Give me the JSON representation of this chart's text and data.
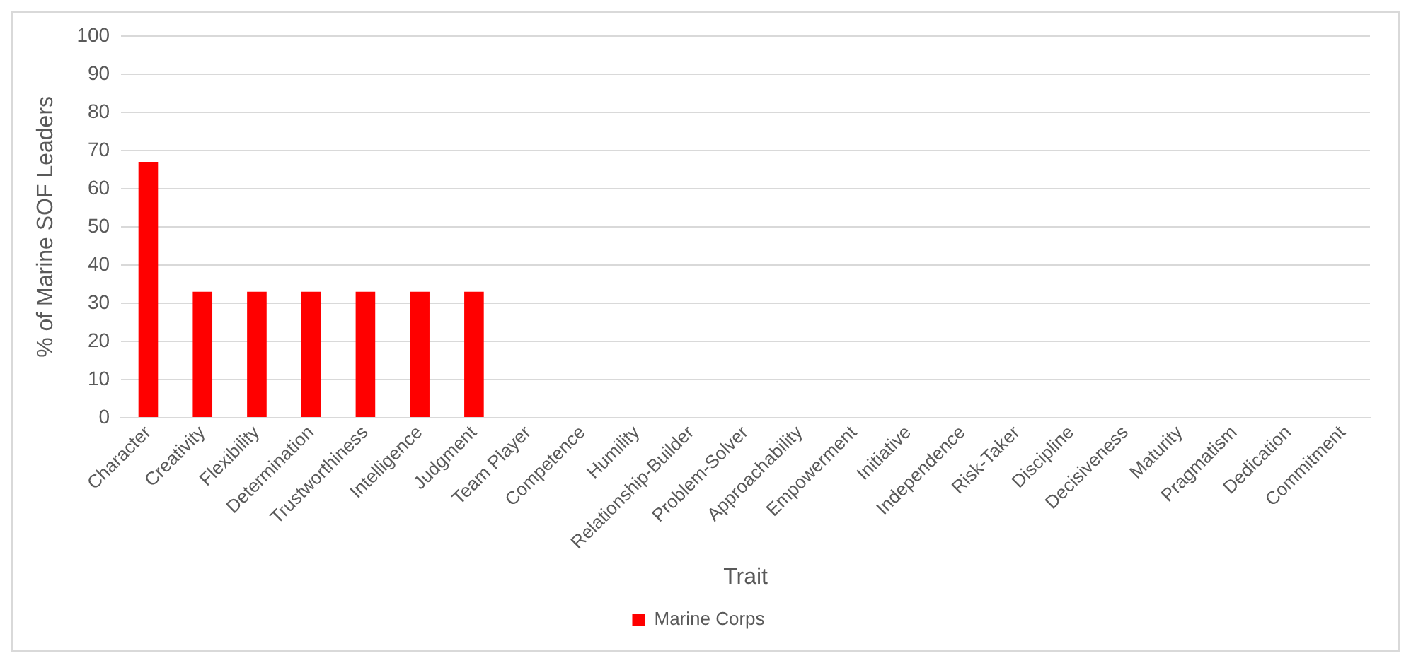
{
  "chart_data": {
    "type": "bar",
    "xlabel": "Trait",
    "ylabel": "% of Marine SOF Leaders",
    "categories": [
      "Character",
      "Creativity",
      "Flexibility",
      "Determination",
      "Trustworthiness",
      "Intelligence",
      "Judgment",
      "Team Player",
      "Competence",
      "Humility",
      "Relationship-Builder",
      "Problem-Solver",
      "Approachability",
      "Empowerment",
      "Initiative",
      "Independence",
      "Risk-Taker",
      "Discipline",
      "Decisiveness",
      "Maturity",
      "Pragmatism",
      "Dedication",
      "Commitment"
    ],
    "series": [
      {
        "name": "Marine Corps",
        "color": "#ff0000",
        "values": [
          67,
          33,
          33,
          33,
          33,
          33,
          33,
          0,
          0,
          0,
          0,
          0,
          0,
          0,
          0,
          0,
          0,
          0,
          0,
          0,
          0,
          0,
          0
        ]
      }
    ],
    "ylim": [
      0,
      100
    ],
    "yticks": [
      0,
      10,
      20,
      30,
      40,
      50,
      60,
      70,
      80,
      90,
      100
    ],
    "grid": "y",
    "legend": "bottom"
  }
}
